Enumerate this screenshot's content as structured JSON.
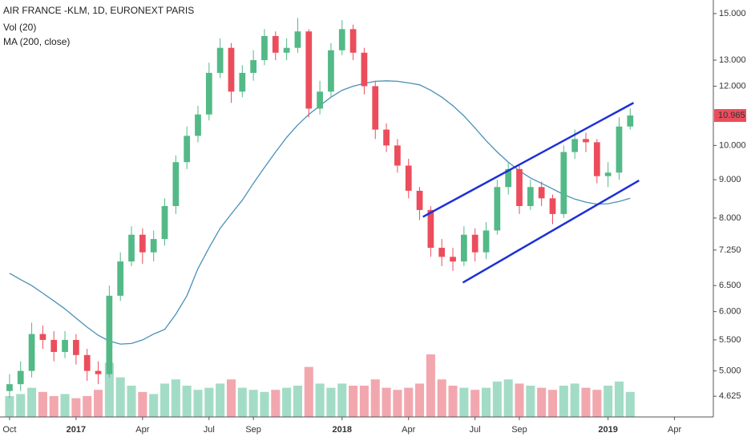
{
  "chart_data": {
    "type": "candlestick",
    "title": "AIR FRANCE -KLM, 1D, EURONEXT PARIS",
    "indicators": [
      "Vol (20)",
      "MA (200, close)"
    ],
    "log_scale": true,
    "categories": [
      "Oct",
      null,
      null,
      null,
      null,
      null,
      "2017",
      null,
      null,
      null,
      null,
      null,
      "Apr",
      null,
      null,
      null,
      null,
      null,
      "Jul",
      null,
      null,
      null,
      "Sep",
      null,
      null,
      null,
      null,
      null,
      null,
      null,
      "2018",
      null,
      null,
      null,
      null,
      null,
      "Apr",
      null,
      null,
      null,
      null,
      null,
      "Jul",
      null,
      null,
      null,
      "Sep",
      null,
      null,
      null,
      null,
      null,
      null,
      null,
      "2019",
      null,
      null,
      null,
      null,
      null,
      "Apr",
      null,
      null,
      null
    ],
    "open": [
      4.7,
      4.8,
      5.0,
      5.6,
      5.5,
      5.3,
      5.5,
      5.25,
      5.0,
      4.95,
      6.3,
      7.0,
      7.6,
      7.2,
      7.5,
      8.3,
      9.5,
      10.3,
      11.0,
      12.5,
      13.5,
      11.8,
      12.5,
      13.0,
      14.0,
      13.3,
      13.5,
      14.2,
      11.2,
      11.8,
      13.4,
      14.3,
      13.3,
      12.0,
      10.5,
      10.0,
      9.4,
      8.7,
      8.2,
      7.3,
      7.1,
      7.0,
      7.6,
      7.2,
      7.7,
      8.8,
      9.3,
      8.3,
      8.8,
      8.5,
      8.1,
      9.8,
      10.2,
      10.1,
      9.1,
      9.2,
      10.6,
      null,
      null,
      null,
      null,
      null,
      null,
      null
    ],
    "high": [
      4.95,
      5.15,
      5.8,
      5.75,
      5.65,
      5.65,
      5.6,
      5.35,
      5.15,
      6.5,
      7.2,
      7.8,
      7.75,
      7.7,
      8.5,
      9.7,
      10.6,
      11.3,
      12.9,
      13.9,
      13.7,
      12.8,
      13.4,
      14.3,
      14.2,
      13.9,
      14.8,
      14.3,
      12.2,
      13.7,
      14.7,
      14.5,
      13.5,
      12.2,
      10.7,
      10.2,
      9.6,
      8.8,
      8.3,
      7.5,
      7.3,
      7.8,
      7.75,
      7.9,
      9.0,
      9.5,
      9.4,
      9.0,
      8.95,
      8.6,
      10.0,
      10.5,
      10.4,
      10.2,
      9.5,
      10.9,
      11.2,
      null,
      null,
      null,
      null,
      null,
      null,
      null
    ],
    "low": [
      4.6,
      4.7,
      4.9,
      5.35,
      5.15,
      5.2,
      5.1,
      4.85,
      4.8,
      4.9,
      6.2,
      6.9,
      6.95,
      7.0,
      7.35,
      8.1,
      9.3,
      10.1,
      10.8,
      12.3,
      11.4,
      11.6,
      12.2,
      12.8,
      13.0,
      13.0,
      13.3,
      10.9,
      11.0,
      11.6,
      13.2,
      13.0,
      11.7,
      10.2,
      9.8,
      9.2,
      8.5,
      7.95,
      7.1,
      6.9,
      6.8,
      6.9,
      7.0,
      7.05,
      7.6,
      8.6,
      8.1,
      8.2,
      8.3,
      7.85,
      8.0,
      9.6,
      9.8,
      8.9,
      8.8,
      9.0,
      10.5,
      null,
      null,
      null,
      null,
      null,
      null,
      null
    ],
    "close": [
      4.8,
      5.0,
      5.6,
      5.5,
      5.3,
      5.5,
      5.25,
      5.0,
      4.95,
      6.3,
      7.0,
      7.6,
      7.2,
      7.5,
      8.3,
      9.5,
      10.3,
      11.0,
      12.5,
      13.5,
      11.8,
      12.5,
      13.0,
      14.0,
      13.3,
      13.5,
      14.2,
      11.2,
      11.8,
      13.4,
      14.3,
      13.3,
      12.0,
      10.5,
      10.0,
      9.4,
      8.7,
      8.2,
      7.3,
      7.1,
      7.0,
      7.6,
      7.2,
      7.7,
      8.8,
      9.3,
      8.3,
      8.8,
      8.5,
      8.1,
      9.8,
      10.2,
      10.1,
      9.1,
      9.2,
      10.6,
      10.965,
      null,
      null,
      null,
      null,
      null,
      null,
      null
    ],
    "volume": [
      1.0,
      1.1,
      1.4,
      1.2,
      1.0,
      1.1,
      0.9,
      1.0,
      1.3,
      2.6,
      1.9,
      1.5,
      1.2,
      1.1,
      1.6,
      1.8,
      1.5,
      1.3,
      1.4,
      1.6,
      1.8,
      1.4,
      1.3,
      1.2,
      1.3,
      1.4,
      1.5,
      2.4,
      1.6,
      1.4,
      1.6,
      1.5,
      1.5,
      1.8,
      1.4,
      1.3,
      1.4,
      1.6,
      3.0,
      1.8,
      1.5,
      1.4,
      1.3,
      1.4,
      1.7,
      1.8,
      1.6,
      1.5,
      1.4,
      1.3,
      1.5,
      1.6,
      1.4,
      1.3,
      1.5,
      1.7,
      1.2,
      null,
      null,
      null,
      null,
      null,
      null,
      null
    ],
    "ma": [
      6.75,
      6.62,
      6.5,
      6.35,
      6.2,
      6.05,
      5.88,
      5.72,
      5.58,
      5.48,
      5.43,
      5.44,
      5.5,
      5.6,
      5.68,
      5.95,
      6.3,
      6.85,
      7.3,
      7.75,
      8.1,
      8.45,
      8.9,
      9.35,
      9.8,
      10.25,
      10.65,
      11.0,
      11.3,
      11.6,
      11.85,
      12.0,
      12.1,
      12.18,
      12.2,
      12.18,
      12.12,
      12.05,
      11.85,
      11.6,
      11.3,
      10.95,
      10.55,
      10.15,
      9.8,
      9.5,
      9.25,
      9.05,
      8.9,
      8.75,
      8.6,
      8.48,
      8.4,
      8.35,
      8.36,
      8.42,
      8.5,
      null,
      null,
      null,
      null,
      null,
      null,
      null
    ],
    "up_color": "#53b987",
    "down_color": "#eb4d5c",
    "volume_up_color": "#a3dcc6",
    "volume_down_color": "#f2a7ae",
    "ma_color": "#4a90b8",
    "trend_lines": [
      {
        "x": [
          37.3,
          56.3
        ],
        "y": [
          8.03,
          11.4
        ],
        "color": "#1d2fd8"
      },
      {
        "x": [
          40.9,
          56.8
        ],
        "y": [
          6.56,
          8.98
        ],
        "color": "#1d2fd8"
      }
    ],
    "ylim": [
      4.34,
      15.64
    ],
    "yticks": [
      4.625,
      {
        "value": 5,
        "label": "5.000"
      },
      {
        "value": 5.5,
        "label": "5.500"
      },
      {
        "value": 6,
        "label": "6.000"
      },
      {
        "value": 6.5,
        "label": "6.500"
      },
      {
        "value": 7.25,
        "label": "7.250"
      },
      {
        "value": 8,
        "label": "8.000"
      },
      {
        "value": 9,
        "label": "9.000"
      },
      {
        "value": 10,
        "label": "10.000"
      },
      {
        "value": 12,
        "label": "12.000"
      },
      {
        "value": 13,
        "label": "13.000"
      },
      {
        "value": 15,
        "label": "15.000"
      }
    ],
    "y2lim": [
      0,
      20
    ]
  }
}
